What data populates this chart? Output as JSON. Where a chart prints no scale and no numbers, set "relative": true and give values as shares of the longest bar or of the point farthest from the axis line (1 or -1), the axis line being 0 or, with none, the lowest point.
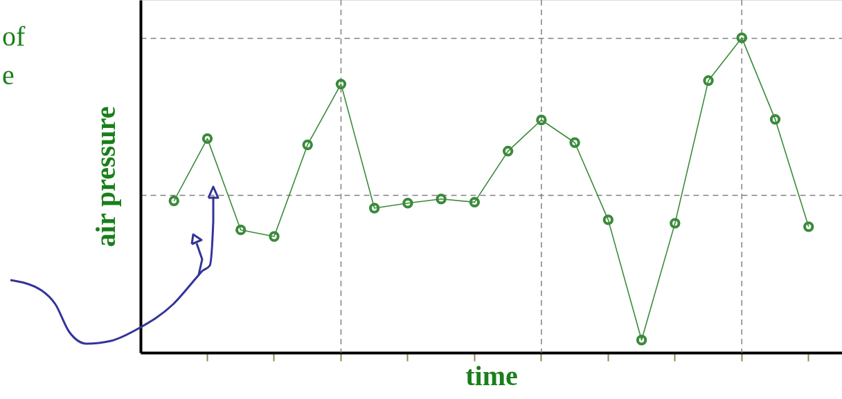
{
  "chart_data": {
    "type": "line",
    "xlabel": "time",
    "ylabel": "air pressure",
    "relative": true,
    "grid": true,
    "marker": "circle",
    "line_style": "solid",
    "categories": [
      null,
      null,
      null,
      null,
      null,
      null,
      null,
      null,
      null,
      null,
      null,
      null,
      null,
      null,
      null,
      null,
      null,
      null,
      null,
      null
    ],
    "annotations": [
      "of",
      "e"
    ],
    "series": [
      {
        "color": "#3a8a3a",
        "values": [
          0.482,
          0.68,
          0.39,
          0.369,
          0.66,
          0.853,
          0.459,
          0.475,
          0.488,
          0.478,
          0.64,
          0.739,
          0.667,
          0.422,
          0.04,
          0.411,
          0.864,
          1,
          0.741,
          0.4
        ]
      }
    ]
  }
}
